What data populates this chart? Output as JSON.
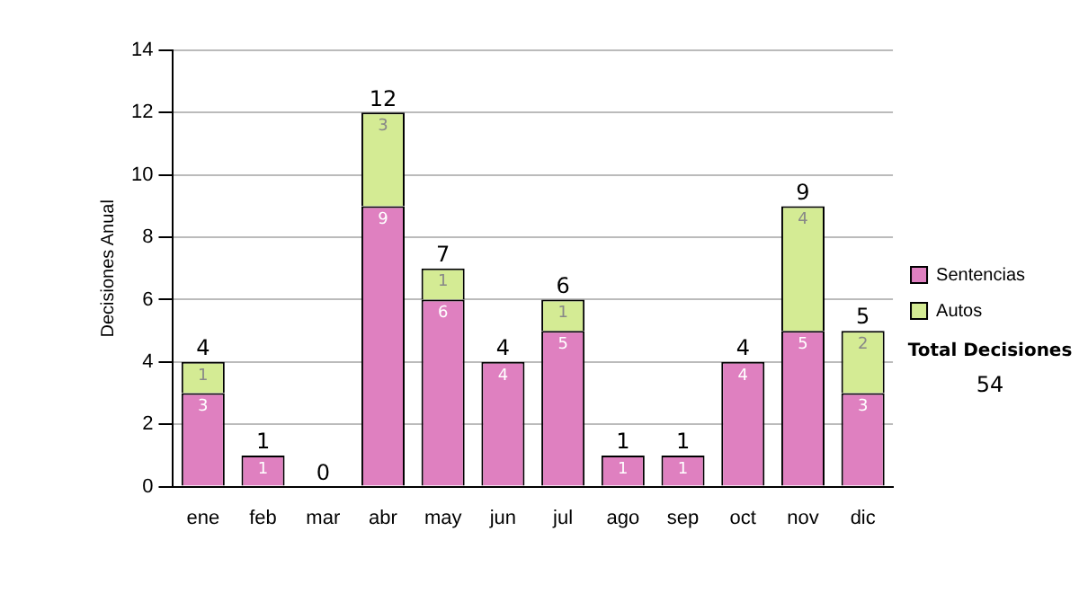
{
  "chart_data": {
    "type": "bar",
    "stacked": true,
    "ylabel": "Decisiones Anual",
    "categories": [
      "ene",
      "feb",
      "mar",
      "abr",
      "may",
      "jun",
      "jul",
      "ago",
      "sep",
      "oct",
      "nov",
      "dic"
    ],
    "series": [
      {
        "name": "Sentencias",
        "color": "#df80c0",
        "values": [
          3,
          1,
          0,
          9,
          6,
          4,
          5,
          1,
          1,
          4,
          5,
          3
        ],
        "value_labels": [
          "3",
          "1",
          null,
          "9",
          "6",
          "4",
          "5",
          "1",
          "1",
          "4",
          "5",
          "3"
        ]
      },
      {
        "name": "Autos",
        "color": "#d4eb94",
        "values": [
          1,
          0,
          0,
          3,
          1,
          0,
          1,
          0,
          0,
          0,
          4,
          2
        ],
        "value_labels": [
          "1",
          null,
          null,
          "3",
          "1",
          null,
          "1",
          null,
          null,
          null,
          "4",
          "2"
        ]
      }
    ],
    "totals": [
      "4",
      "1",
      "0",
      "12",
      "7",
      "4",
      "6",
      "1",
      "1",
      "4",
      "9",
      "5"
    ],
    "ylim": [
      0,
      14
    ],
    "yticks": [
      0,
      2,
      4,
      6,
      8,
      10,
      12,
      14
    ],
    "grid": "y",
    "legend": "right",
    "annotations": [
      "Total Decisiones",
      "54"
    ]
  }
}
